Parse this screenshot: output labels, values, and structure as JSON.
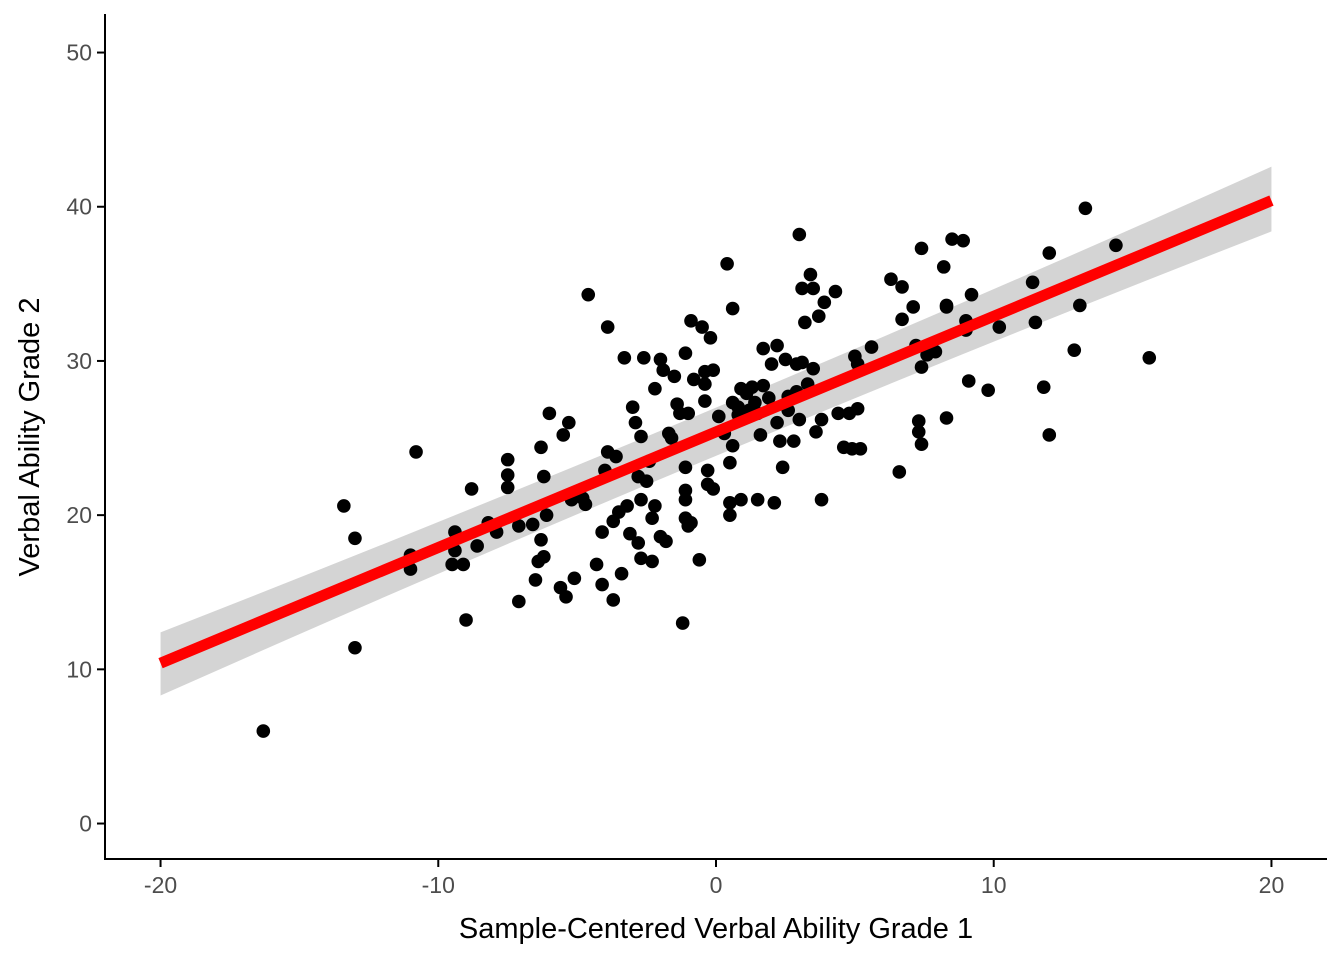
{
  "chart_data": {
    "type": "scatter",
    "title": "",
    "xlabel": "Sample-Centered Verbal Ability Grade 1",
    "ylabel": "Verbal Ability Grade 2",
    "xlim": [
      -22,
      22
    ],
    "ylim": [
      -2.3,
      52.5
    ],
    "x_ticks": [
      -20,
      -10,
      0,
      10,
      20
    ],
    "y_ticks": [
      0,
      10,
      20,
      30,
      40,
      50
    ],
    "x_tick_labels": [
      "-20",
      "-10",
      "0",
      "10",
      "20"
    ],
    "y_tick_labels": [
      "0",
      "10",
      "20",
      "30",
      "40",
      "50"
    ],
    "grid": false,
    "point_color": "#000000",
    "fit_line": {
      "method": "linear regression",
      "x_range": [
        -20,
        20
      ],
      "y_at_start": 10.4,
      "y_at_end": 40.4,
      "color": "#ff0000",
      "ci_lower": [
        8.3,
        38.4
      ],
      "ci_upper": [
        12.4,
        42.6
      ],
      "ci_color": "#cccccc"
    },
    "points": [
      [
        -16.3,
        6.0
      ],
      [
        -13.4,
        20.6
      ],
      [
        -13.0,
        18.5
      ],
      [
        -13.0,
        11.4
      ],
      [
        -11.0,
        16.5
      ],
      [
        -11.0,
        17.4
      ],
      [
        -10.8,
        24.1
      ],
      [
        -9.5,
        16.8
      ],
      [
        -9.4,
        18.9
      ],
      [
        -9.4,
        17.7
      ],
      [
        -9.1,
        16.8
      ],
      [
        -9.0,
        13.2
      ],
      [
        -8.8,
        21.7
      ],
      [
        -8.6,
        18.0
      ],
      [
        -8.2,
        19.5
      ],
      [
        -7.9,
        18.9
      ],
      [
        -7.5,
        23.6
      ],
      [
        -7.5,
        22.6
      ],
      [
        -7.5,
        21.8
      ],
      [
        -7.1,
        14.4
      ],
      [
        -7.1,
        19.3
      ],
      [
        -6.6,
        19.4
      ],
      [
        -6.5,
        15.8
      ],
      [
        -6.4,
        17.0
      ],
      [
        -6.3,
        18.4
      ],
      [
        -6.3,
        24.4
      ],
      [
        -6.2,
        22.5
      ],
      [
        -6.2,
        17.3
      ],
      [
        -6.1,
        20.0
      ],
      [
        -6.0,
        26.6
      ],
      [
        -5.6,
        15.3
      ],
      [
        -5.5,
        25.2
      ],
      [
        -5.4,
        14.7
      ],
      [
        -5.3,
        26.0
      ],
      [
        -5.1,
        15.9
      ],
      [
        -5.2,
        21.0
      ],
      [
        -4.8,
        21.1
      ],
      [
        -4.7,
        20.7
      ],
      [
        -4.6,
        34.3
      ],
      [
        -4.3,
        16.8
      ],
      [
        -4.1,
        15.5
      ],
      [
        -4.1,
        18.9
      ],
      [
        -4.0,
        22.9
      ],
      [
        -3.9,
        32.2
      ],
      [
        -3.9,
        24.1
      ],
      [
        -3.7,
        19.6
      ],
      [
        -3.7,
        14.5
      ],
      [
        -3.6,
        23.8
      ],
      [
        -3.5,
        20.2
      ],
      [
        -3.4,
        16.2
      ],
      [
        -3.3,
        30.2
      ],
      [
        -3.2,
        20.6
      ],
      [
        -3.1,
        18.8
      ],
      [
        -3.0,
        27.0
      ],
      [
        -2.9,
        26.0
      ],
      [
        -2.8,
        18.2
      ],
      [
        -2.7,
        17.2
      ],
      [
        -2.8,
        22.5
      ],
      [
        -2.7,
        21.0
      ],
      [
        -2.7,
        25.1
      ],
      [
        -2.6,
        30.2
      ],
      [
        -2.5,
        22.2
      ],
      [
        -2.4,
        23.5
      ],
      [
        -2.3,
        19.8
      ],
      [
        -2.3,
        17.0
      ],
      [
        -2.2,
        28.2
      ],
      [
        -2.2,
        20.6
      ],
      [
        -2.0,
        18.6
      ],
      [
        -2.0,
        30.1
      ],
      [
        -1.9,
        29.4
      ],
      [
        -1.8,
        18.3
      ],
      [
        -1.7,
        25.3
      ],
      [
        -1.6,
        25.0
      ],
      [
        -1.5,
        29.0
      ],
      [
        -1.4,
        27.2
      ],
      [
        -1.3,
        26.6
      ],
      [
        -1.2,
        13.0
      ],
      [
        -1.1,
        30.5
      ],
      [
        -1.1,
        23.1
      ],
      [
        -1.1,
        21.0
      ],
      [
        -1.1,
        21.6
      ],
      [
        -1.1,
        19.8
      ],
      [
        -1.0,
        26.6
      ],
      [
        -1.0,
        19.3
      ],
      [
        -0.9,
        32.6
      ],
      [
        -0.9,
        19.5
      ],
      [
        -0.8,
        28.8
      ],
      [
        -0.6,
        17.1
      ],
      [
        -0.5,
        32.2
      ],
      [
        -0.4,
        29.3
      ],
      [
        -0.4,
        28.5
      ],
      [
        -0.4,
        27.4
      ],
      [
        -0.3,
        22.0
      ],
      [
        -0.3,
        22.9
      ],
      [
        -0.2,
        31.5
      ],
      [
        -0.1,
        29.4
      ],
      [
        -0.1,
        21.7
      ],
      [
        0.1,
        26.4
      ],
      [
        0.3,
        25.3
      ],
      [
        0.4,
        36.3
      ],
      [
        0.5,
        20.8
      ],
      [
        0.5,
        20.0
      ],
      [
        0.5,
        23.4
      ],
      [
        0.6,
        24.5
      ],
      [
        0.6,
        27.3
      ],
      [
        0.6,
        33.4
      ],
      [
        0.8,
        27.0
      ],
      [
        0.8,
        26.5
      ],
      [
        0.9,
        28.2
      ],
      [
        0.9,
        21.0
      ],
      [
        1.1,
        27.9
      ],
      [
        1.2,
        26.8
      ],
      [
        1.3,
        28.3
      ],
      [
        1.4,
        27.3
      ],
      [
        1.5,
        26.6
      ],
      [
        1.5,
        21.0
      ],
      [
        1.6,
        25.2
      ],
      [
        1.7,
        28.4
      ],
      [
        1.7,
        30.8
      ],
      [
        1.9,
        27.6
      ],
      [
        2.0,
        29.8
      ],
      [
        2.1,
        20.8
      ],
      [
        2.2,
        31.0
      ],
      [
        2.2,
        26.0
      ],
      [
        2.3,
        24.8
      ],
      [
        2.4,
        23.1
      ],
      [
        2.5,
        30.1
      ],
      [
        2.6,
        26.8
      ],
      [
        2.6,
        27.7
      ],
      [
        2.8,
        24.8
      ],
      [
        2.9,
        29.8
      ],
      [
        2.9,
        28.0
      ],
      [
        3.0,
        38.2
      ],
      [
        3.0,
        26.2
      ],
      [
        3.1,
        34.7
      ],
      [
        3.1,
        29.9
      ],
      [
        3.2,
        32.5
      ],
      [
        3.3,
        28.5
      ],
      [
        3.4,
        35.6
      ],
      [
        3.5,
        29.5
      ],
      [
        3.5,
        34.7
      ],
      [
        3.6,
        25.4
      ],
      [
        3.7,
        32.9
      ],
      [
        3.8,
        26.2
      ],
      [
        3.8,
        21.0
      ],
      [
        3.9,
        33.8
      ],
      [
        4.3,
        34.5
      ],
      [
        4.4,
        26.6
      ],
      [
        4.6,
        24.4
      ],
      [
        4.8,
        26.6
      ],
      [
        4.9,
        24.3
      ],
      [
        5.0,
        30.3
      ],
      [
        5.1,
        29.8
      ],
      [
        5.1,
        26.9
      ],
      [
        5.2,
        24.3
      ],
      [
        5.6,
        30.9
      ],
      [
        6.3,
        35.3
      ],
      [
        6.6,
        22.8
      ],
      [
        6.7,
        34.8
      ],
      [
        6.7,
        32.7
      ],
      [
        7.1,
        33.5
      ],
      [
        7.2,
        31.0
      ],
      [
        7.3,
        25.4
      ],
      [
        7.3,
        26.1
      ],
      [
        7.4,
        24.6
      ],
      [
        7.4,
        29.6
      ],
      [
        7.4,
        37.3
      ],
      [
        7.6,
        30.4
      ],
      [
        7.9,
        30.6
      ],
      [
        8.2,
        36.1
      ],
      [
        8.3,
        33.6
      ],
      [
        8.3,
        33.5
      ],
      [
        8.3,
        26.3
      ],
      [
        8.5,
        37.9
      ],
      [
        8.9,
        37.8
      ],
      [
        9.0,
        32.6
      ],
      [
        9.0,
        32.0
      ],
      [
        9.1,
        28.7
      ],
      [
        9.2,
        34.3
      ],
      [
        9.8,
        28.1
      ],
      [
        10.2,
        32.2
      ],
      [
        11.4,
        35.1
      ],
      [
        11.5,
        32.5
      ],
      [
        11.8,
        28.3
      ],
      [
        12.0,
        37.0
      ],
      [
        12.0,
        25.2
      ],
      [
        12.9,
        30.7
      ],
      [
        13.1,
        33.6
      ],
      [
        13.3,
        39.9
      ],
      [
        14.4,
        37.5
      ],
      [
        15.6,
        30.2
      ]
    ]
  }
}
